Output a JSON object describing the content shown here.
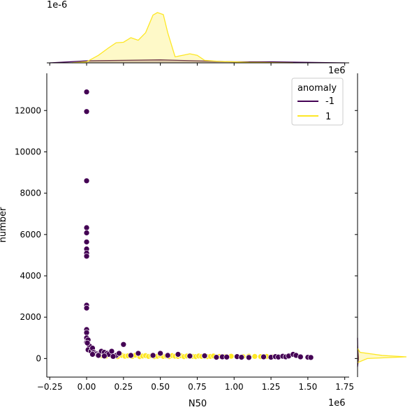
{
  "chart_data": {
    "type": "scatter",
    "xlabel": "N50",
    "ylabel": "number",
    "x_offset_label": "1e6",
    "y_offset_label": "1e-6",
    "right_offset_label": "1e6",
    "xlim": [
      -0.27,
      1.78
    ],
    "ylim": [
      -900,
      13800
    ],
    "xticks": [
      -0.25,
      0.0,
      0.25,
      0.5,
      0.75,
      1.0,
      1.25,
      1.5,
      1.75
    ],
    "xtick_labels": [
      "−0.25",
      "0.00",
      "0.25",
      "0.50",
      "0.75",
      "1.00",
      "1.25",
      "1.50",
      "1.75"
    ],
    "yticks": [
      0,
      2000,
      4000,
      6000,
      8000,
      10000,
      12000
    ],
    "ytick_labels": [
      "0",
      "2000",
      "4000",
      "6000",
      "8000",
      "10000",
      "12000"
    ],
    "legend": {
      "title": "anomaly",
      "placement": "top-right",
      "entries": [
        {
          "label": "-1",
          "color": "#440154"
        },
        {
          "label": "1",
          "color": "#fde725"
        }
      ]
    },
    "series": [
      {
        "label": "-1",
        "color": "#440154",
        "x": [
          0.0,
          0.0,
          0.0,
          0.0,
          0.0,
          0.0,
          0.0,
          0.0,
          0.0,
          0.0,
          0.0,
          0.0,
          0.0,
          0.0,
          0.0,
          0.01,
          0.02,
          0.005,
          0.01,
          0.03,
          0.04,
          0.05,
          0.06,
          0.07,
          0.08,
          0.1,
          0.12,
          0.14,
          0.15,
          0.17,
          0.2,
          0.25,
          0.22,
          0.3,
          0.35,
          0.45,
          0.5,
          0.55,
          0.62,
          0.7,
          0.8,
          0.88,
          0.92,
          0.95,
          1.02,
          1.05,
          1.1,
          1.2,
          1.25,
          1.28,
          1.3,
          1.33,
          1.35,
          1.37,
          1.4,
          1.42,
          1.45,
          1.5,
          1.52,
          0.04,
          0.08,
          0.12,
          0.18
        ],
        "y": [
          12900,
          11950,
          8600,
          6330,
          6080,
          5640,
          5300,
          5100,
          4950,
          2580,
          2440,
          1400,
          1250,
          1000,
          780,
          900,
          600,
          750,
          420,
          350,
          500,
          300,
          250,
          220,
          180,
          350,
          300,
          250,
          200,
          350,
          150,
          680,
          250,
          150,
          250,
          150,
          250,
          150,
          200,
          120,
          130,
          60,
          80,
          70,
          90,
          60,
          50,
          80,
          60,
          90,
          70,
          110,
          80,
          120,
          200,
          150,
          80,
          60,
          50,
          200,
          150,
          120,
          100
        ]
      },
      {
        "label": "1",
        "color": "#fde725",
        "x": [
          0.1,
          0.13,
          0.16,
          0.19,
          0.21,
          0.24,
          0.26,
          0.28,
          0.31,
          0.33,
          0.36,
          0.38,
          0.4,
          0.42,
          0.44,
          0.46,
          0.48,
          0.5,
          0.52,
          0.54,
          0.56,
          0.58,
          0.6,
          0.62,
          0.64,
          0.66,
          0.68,
          0.7,
          0.72,
          0.74,
          0.76,
          0.78,
          0.8,
          0.82,
          0.84,
          0.86,
          0.9,
          0.94,
          0.98,
          1.02,
          1.06,
          1.1,
          1.14,
          1.18,
          1.22,
          1.26
        ],
        "y": [
          140,
          110,
          170,
          120,
          90,
          150,
          110,
          130,
          100,
          160,
          90,
          120,
          140,
          100,
          130,
          90,
          110,
          150,
          100,
          120,
          90,
          140,
          110,
          100,
          130,
          90,
          120,
          110,
          100,
          90,
          120,
          100,
          110,
          90,
          100,
          120,
          100,
          90,
          110,
          100,
          90,
          110,
          100,
          90,
          100,
          80
        ]
      }
    ],
    "marginal_top": {
      "type": "area",
      "series": [
        {
          "label": "-1",
          "color": "#440154",
          "x": [
            -0.25,
            0.0,
            0.25,
            0.5,
            0.75,
            1.0,
            1.25,
            1.5,
            1.75
          ],
          "density": [
            0.0,
            0.04,
            0.05,
            0.06,
            0.04,
            0.02,
            0.02,
            0.01,
            0.0
          ]
        },
        {
          "label": "1",
          "color": "#fde725",
          "x": [
            -0.1,
            0.0,
            0.08,
            0.15,
            0.2,
            0.25,
            0.3,
            0.35,
            0.4,
            0.45,
            0.48,
            0.52,
            0.55,
            0.6,
            0.65,
            0.7,
            0.75,
            0.8,
            0.9,
            1.0,
            1.1,
            1.25,
            1.4
          ],
          "density": [
            0.0,
            0.02,
            0.15,
            0.3,
            0.4,
            0.41,
            0.5,
            0.45,
            0.6,
            0.95,
            1.0,
            0.96,
            0.6,
            0.12,
            0.15,
            0.18,
            0.15,
            0.05,
            0.03,
            0.02,
            0.01,
            0.005,
            0.0
          ]
        }
      ]
    },
    "marginal_right": {
      "type": "area",
      "series": [
        {
          "label": "-1",
          "color": "#440154",
          "y": [
            -400,
            0,
            300,
            600,
            1000
          ],
          "density": [
            0.0,
            0.02,
            0.01,
            0.003,
            0.0
          ]
        },
        {
          "label": "1",
          "color": "#fde725",
          "y": [
            -200,
            0,
            80,
            150,
            300,
            500
          ],
          "density": [
            0.0,
            0.2,
            1.0,
            0.5,
            0.05,
            0.0
          ]
        }
      ]
    }
  }
}
